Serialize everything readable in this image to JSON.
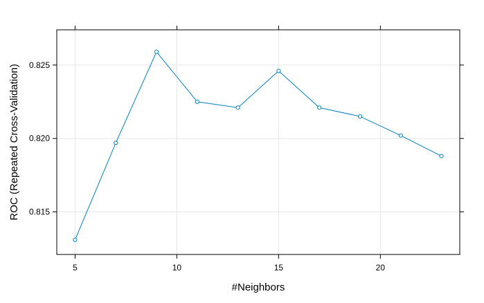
{
  "chart_data": {
    "type": "line",
    "title": "",
    "xlabel": "#Neighbors",
    "ylabel": "ROC (Repeated Cross-Validation)",
    "x": [
      5,
      7,
      9,
      11,
      13,
      15,
      17,
      19,
      21,
      23
    ],
    "series": [
      {
        "values": [
          0.8131,
          0.8197,
          0.8259,
          0.8225,
          0.8221,
          0.8246,
          0.8221,
          0.8215,
          0.8202,
          0.8188
        ]
      }
    ],
    "xlim": [
      4.1,
      23.9
    ],
    "ylim": [
      0.8121,
      0.8274
    ],
    "x_ticks": [
      5,
      10,
      15,
      20
    ],
    "x_tick_labels": [
      "5",
      "10",
      "15",
      "20"
    ],
    "y_ticks": [
      0.815,
      0.82,
      0.825
    ],
    "y_tick_labels": [
      "0.815",
      "0.820",
      "0.825"
    ],
    "grid": true,
    "colors": {
      "line": "#0080c0",
      "grid": "#e6e6e6",
      "frame": "#000000"
    }
  }
}
